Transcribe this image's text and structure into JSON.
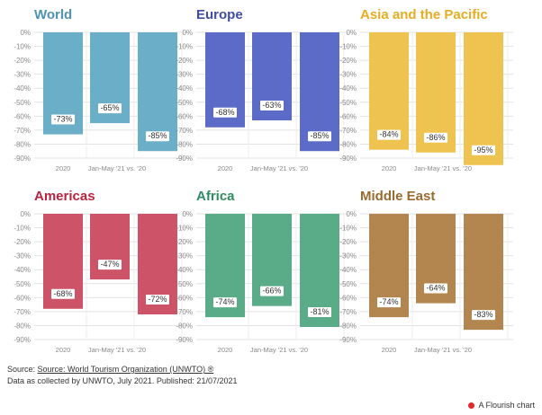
{
  "chart_data": [
    {
      "type": "bar",
      "title": "World",
      "color": "#6aaec7",
      "categories": [
        "2020",
        "Jan-May '21 vs. '20",
        ""
      ],
      "values": [
        -73,
        -65,
        -85
      ],
      "data_labels": [
        "-73%",
        "-65%",
        "-85%"
      ],
      "ylim": [
        -90,
        0
      ],
      "yticks": [
        "0%",
        "-10%",
        "-20%",
        "-30%",
        "-40%",
        "-50%",
        "-60%",
        "-70%",
        "-80%",
        "-90%"
      ],
      "title_color": "#4f93b1"
    },
    {
      "type": "bar",
      "title": "Europe",
      "color": "#5b6bc7",
      "categories": [
        "2020",
        "Jan-May '21 vs. '20",
        ""
      ],
      "values": [
        -68,
        -63,
        -85
      ],
      "data_labels": [
        "-68%",
        "-63%",
        "-85%"
      ],
      "ylim": [
        -90,
        0
      ],
      "yticks": [
        "0%",
        "-10%",
        "-20%",
        "-30%",
        "-40%",
        "-50%",
        "-60%",
        "-70%",
        "-80%",
        "-90%"
      ],
      "title_color": "#3f4ea3"
    },
    {
      "type": "bar",
      "title": "Asia and the Pacific",
      "color": "#efc34f",
      "categories": [
        "2020",
        "Jan-May '21 vs. '20",
        ""
      ],
      "values": [
        -84,
        -86,
        -95
      ],
      "data_labels": [
        "-84%",
        "-86%",
        "-95%"
      ],
      "ylim": [
        -90,
        0
      ],
      "yticks": [
        "0%",
        "-10%",
        "-20%",
        "-30%",
        "-40%",
        "-50%",
        "-60%",
        "-70%",
        "-80%",
        "-90%"
      ],
      "title_color": "#e4ad22"
    },
    {
      "type": "bar",
      "title": "Americas",
      "color": "#cd5468",
      "categories": [
        "2020",
        "Jan-May '21 vs. '20",
        ""
      ],
      "values": [
        -68,
        -47,
        -72
      ],
      "data_labels": [
        "-68%",
        "-47%",
        "-72%"
      ],
      "ylim": [
        -90,
        0
      ],
      "yticks": [
        "0%",
        "-10%",
        "-20%",
        "-30%",
        "-40%",
        "-50%",
        "-60%",
        "-70%",
        "-80%",
        "-90%"
      ],
      "title_color": "#b8243f"
    },
    {
      "type": "bar",
      "title": "Africa",
      "color": "#5aac88",
      "categories": [
        "2020",
        "Jan-May '21 vs. '20",
        ""
      ],
      "values": [
        -74,
        -66,
        -81
      ],
      "data_labels": [
        "-74%",
        "-66%",
        "-81%"
      ],
      "ylim": [
        -90,
        0
      ],
      "yticks": [
        "0%",
        "-10%",
        "-20%",
        "-30%",
        "-40%",
        "-50%",
        "-60%",
        "-70%",
        "-80%",
        "-90%"
      ],
      "title_color": "#2f8c62"
    },
    {
      "type": "bar",
      "title": "Middle East",
      "color": "#b4864f",
      "categories": [
        "2020",
        "Jan-May '21 vs. '20",
        ""
      ],
      "values": [
        -74,
        -64,
        -83
      ],
      "data_labels": [
        "-74%",
        "-64%",
        "-83%"
      ],
      "ylim": [
        -90,
        0
      ],
      "yticks": [
        "0%",
        "-10%",
        "-20%",
        "-30%",
        "-40%",
        "-50%",
        "-60%",
        "-70%",
        "-80%",
        "-90%"
      ],
      "title_color": "#9a6a2e"
    }
  ],
  "footer": {
    "source_prefix": "Source: ",
    "source_link": "Source: World Tourism Organization (UNWTO) ®",
    "note": "Data as collected by UNWTO, July 2021. Published: 21/07/2021"
  },
  "credit": {
    "label": "A Flourish chart"
  }
}
